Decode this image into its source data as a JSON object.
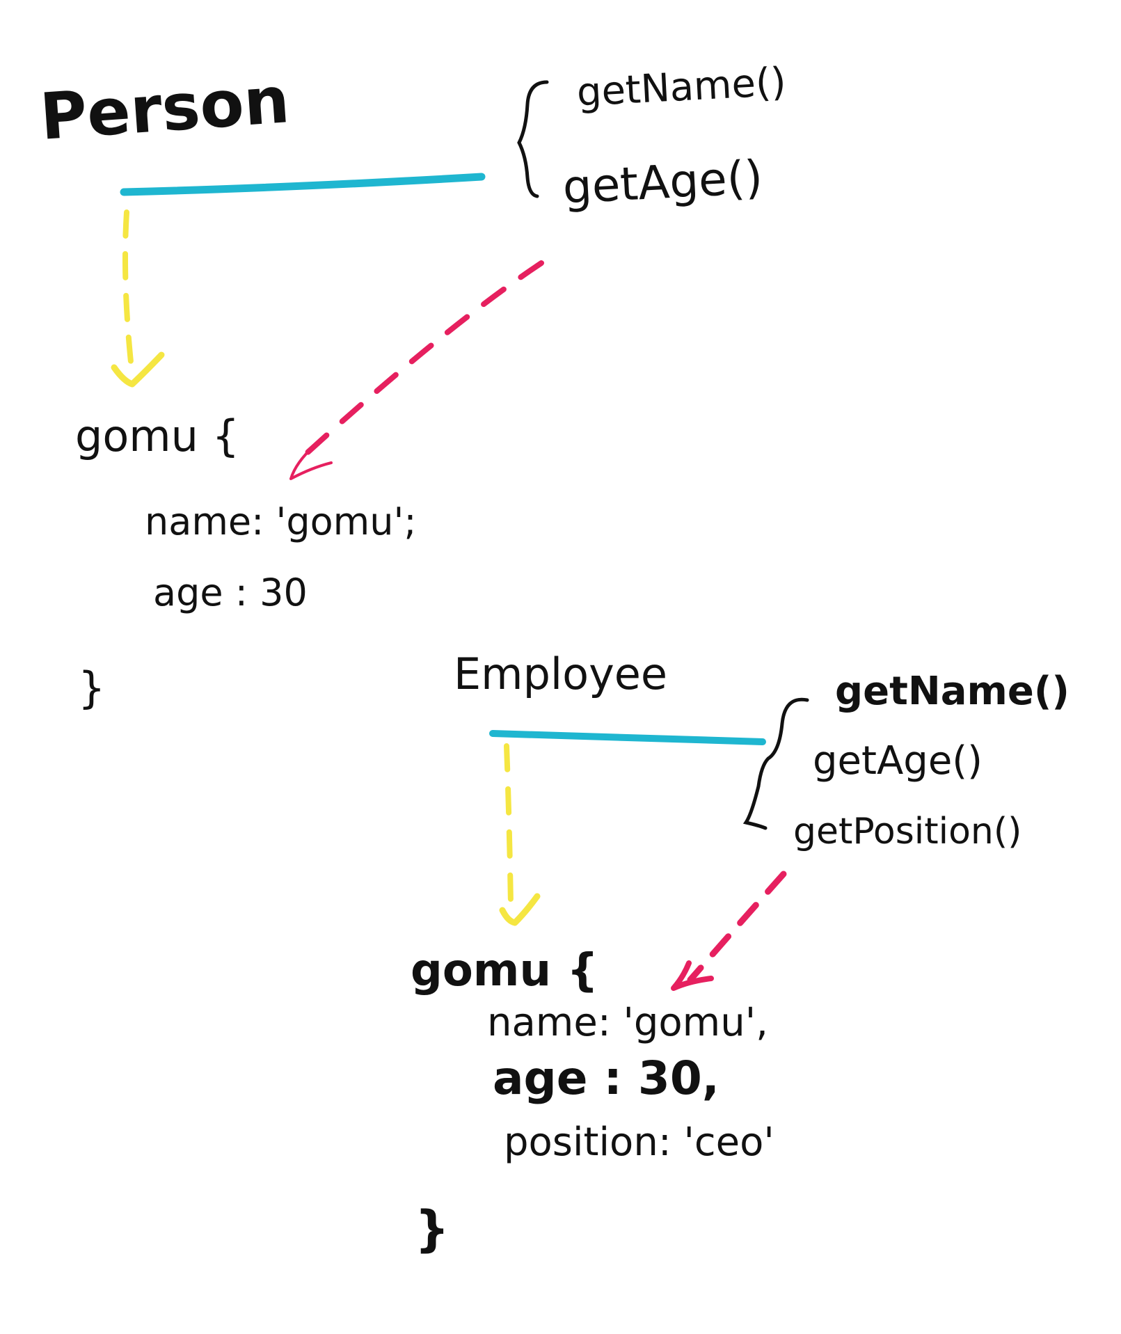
{
  "colors": {
    "background": "#ffffff",
    "ink": "#111111",
    "link_line": "#1fb6d0",
    "instance_arrow": "#f5e642",
    "prototype_arrow": "#e6205f"
  },
  "person": {
    "class_name": "Person",
    "methods": [
      "getName()",
      "getAge()"
    ],
    "instance": {
      "open": "gomu {",
      "fields": [
        "name: 'gomu';",
        "age : 30"
      ],
      "close": "}"
    }
  },
  "employee": {
    "class_name": "Employee",
    "methods": [
      "getName()",
      "getAge()",
      "getPosition()"
    ],
    "instance": {
      "open": "gomu {",
      "fields": [
        "name: 'gomu',",
        "age : 30,",
        "position: 'ceo'"
      ],
      "close": "}"
    }
  }
}
